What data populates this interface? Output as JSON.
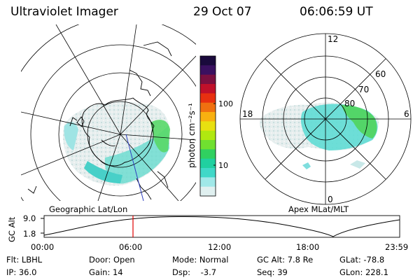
{
  "header": {
    "instrument": "Ultraviolet Imager",
    "date": "29 Oct 07",
    "time": "06:06:59 UT"
  },
  "colorbar": {
    "unit_label": "photon cm⁻²s⁻¹",
    "tick_labels": [
      "100",
      "10"
    ],
    "colors": [
      "#1a0a3c",
      "#3a1060",
      "#7a1040",
      "#c0102a",
      "#e83010",
      "#f07010",
      "#f8b010",
      "#e8e010",
      "#b0e810",
      "#70e030",
      "#30d060",
      "#20d0a0",
      "#40d8c8",
      "#a0e8e8",
      "#e0f0f0"
    ]
  },
  "left_map": {
    "label": "Geographic Lat/Lon"
  },
  "right_map": {
    "label": "Apex MLat/MLT",
    "mlt_labels": {
      "top": "12",
      "left": "18",
      "right": "6",
      "bottom": "0"
    },
    "lat_labels": [
      "60",
      "70",
      "80"
    ]
  },
  "altitude_plot": {
    "y_label": "GC Alt",
    "y_ticks": [
      "9.0",
      "1.8"
    ],
    "x_ticks": [
      "00:00",
      "06:00",
      "12:00",
      "18:00",
      "23:59"
    ],
    "current_time_marker": "06:06:59",
    "marker_color": "#e00000"
  },
  "status": {
    "flt": "Flt: LBHL",
    "ip": "IP: 36.0",
    "door": "Door: Open",
    "gain": "Gain: 14",
    "mode": "Mode: Normal",
    "dsp": "Dsp:    -3.7",
    "gc_alt": "GC Alt: 7.8 Re",
    "seq": "Seq: 39",
    "glat": "GLat: -78.8",
    "glon": "GLon: 228.1"
  }
}
